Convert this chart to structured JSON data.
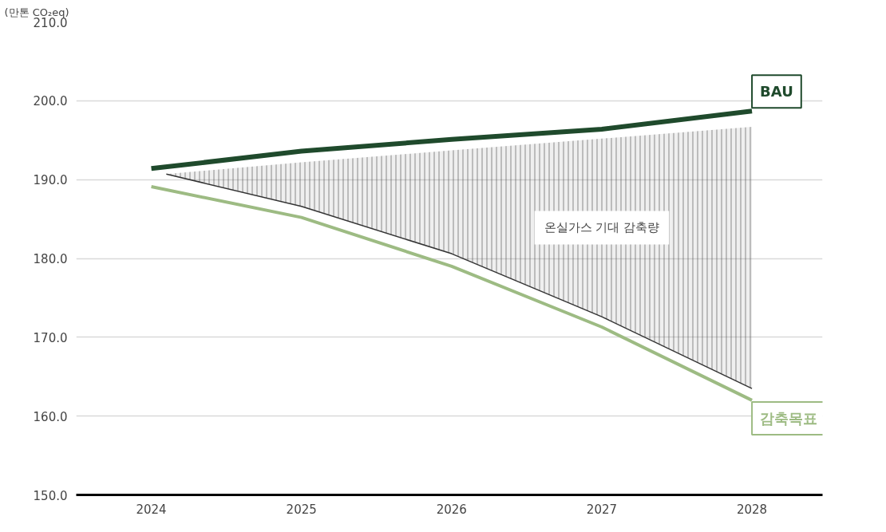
{
  "chart_data": {
    "type": "line",
    "ylabel": "(만톤 CO₂eq)",
    "x": [
      2024,
      2025,
      2026,
      2027,
      2028
    ],
    "series": [
      {
        "name": "BAU",
        "color": "#1f4a2c",
        "values": [
          191.4,
          193.6,
          195.1,
          196.4,
          198.7
        ]
      },
      {
        "name": "감축목표",
        "color": "#9dbb83",
        "values": [
          189.1,
          185.2,
          179.0,
          171.3,
          162.0
        ]
      },
      {
        "name": "온실가스 기대 감축량",
        "color": "#333333",
        "x": [
          2024.1,
          2025,
          2026,
          2027,
          2028
        ],
        "upper": [
          190.7,
          192.2,
          193.7,
          195.2,
          196.7
        ],
        "lower": [
          190.7,
          186.6,
          180.6,
          172.6,
          163.5
        ],
        "values": [
          190.7,
          186.6,
          180.6,
          172.6,
          163.5
        ]
      }
    ],
    "xlim": [
      2023.5,
      2028.47
    ],
    "xticks": [
      2024,
      2025,
      2026,
      2027,
      2028
    ],
    "ylim": [
      150,
      210
    ],
    "yticks": [
      {
        "value": 150,
        "label": "150.0"
      },
      {
        "value": 160,
        "label": "160.0"
      },
      {
        "value": 170,
        "label": "170.0"
      },
      {
        "value": 180,
        "label": "180.0"
      },
      {
        "value": 190,
        "label": "190.0"
      },
      {
        "value": 200,
        "label": "200.0"
      },
      {
        "value": 210,
        "label": "210.0"
      }
    ],
    "grid": "y",
    "marker": "none",
    "line_style": "solid"
  }
}
